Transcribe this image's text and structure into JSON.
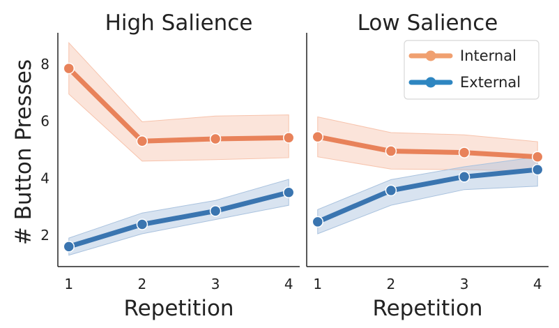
{
  "chart_data": {
    "type": "line",
    "ylabel": "# Button Presses",
    "legend": {
      "placement": "top-right",
      "entries": [
        {
          "name": "Internal",
          "color": "#f0a070"
        },
        {
          "name": "External",
          "color": "#2e86c1"
        }
      ]
    },
    "panels": [
      {
        "title": "High Salience",
        "xlabel": "Repetition",
        "x": [
          1,
          2,
          3,
          4
        ],
        "ylim": [
          0.9,
          9.1
        ],
        "yticks": [
          2,
          4,
          6,
          8
        ],
        "series": [
          {
            "name": "Internal",
            "color": "#e8825a",
            "band": "#f7c3ac",
            "values": [
              7.85,
              5.3,
              5.38,
              5.42
            ],
            "lower": [
              6.95,
              4.6,
              4.65,
              4.72
            ],
            "upper": [
              8.75,
              5.98,
              6.18,
              6.22
            ]
          },
          {
            "name": "External",
            "color": "#3a75b0",
            "band": "#a9c2de",
            "values": [
              1.6,
              2.38,
              2.85,
              3.5
            ],
            "lower": [
              1.3,
              2.05,
              2.55,
              3.05
            ],
            "upper": [
              1.9,
              2.78,
              3.22,
              3.96
            ]
          }
        ]
      },
      {
        "title": "Low Salience",
        "xlabel": "Repetition",
        "x": [
          1,
          2,
          3,
          4
        ],
        "ylim": [
          0.9,
          9.1
        ],
        "yticks": [],
        "series": [
          {
            "name": "Internal",
            "color": "#e8825a",
            "band": "#f7c3ac",
            "values": [
              5.45,
              4.95,
              4.9,
              4.75
            ],
            "lower": [
              4.75,
              4.32,
              4.3,
              4.25
            ],
            "upper": [
              6.15,
              5.6,
              5.52,
              5.28
            ]
          },
          {
            "name": "External",
            "color": "#3a75b0",
            "band": "#a9c2de",
            "values": [
              2.47,
              3.57,
              4.05,
              4.3
            ],
            "lower": [
              2.05,
              3.05,
              3.6,
              3.72
            ],
            "upper": [
              2.9,
              3.95,
              4.4,
              4.75
            ]
          }
        ]
      }
    ]
  }
}
